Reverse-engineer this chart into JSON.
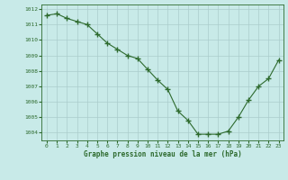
{
  "x": [
    0,
    1,
    2,
    3,
    4,
    5,
    6,
    7,
    8,
    9,
    10,
    11,
    12,
    13,
    14,
    15,
    16,
    17,
    18,
    19,
    20,
    21,
    22,
    23
  ],
  "y": [
    1011.6,
    1011.7,
    1011.4,
    1011.2,
    1011.0,
    1010.4,
    1009.8,
    1009.4,
    1009.0,
    1008.8,
    1008.1,
    1007.4,
    1006.8,
    1005.4,
    1004.8,
    1003.9,
    1003.9,
    1003.9,
    1004.1,
    1005.0,
    1006.1,
    1007.0,
    1007.5,
    1008.7
  ],
  "line_color": "#2d6a2d",
  "marker_color": "#2d6a2d",
  "bg_color": "#c8eae8",
  "grid_color": "#aacccc",
  "xlabel": "Graphe pression niveau de la mer (hPa)",
  "xlabel_color": "#2d6a2d",
  "tick_color": "#2d6a2d",
  "ylim": [
    1003.5,
    1012.3
  ],
  "yticks": [
    1004,
    1005,
    1006,
    1007,
    1008,
    1009,
    1010,
    1011,
    1012
  ],
  "xticks": [
    0,
    1,
    2,
    3,
    4,
    5,
    6,
    7,
    8,
    9,
    10,
    11,
    12,
    13,
    14,
    15,
    16,
    17,
    18,
    19,
    20,
    21,
    22,
    23
  ]
}
